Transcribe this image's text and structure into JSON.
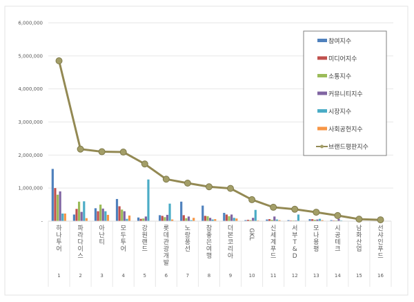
{
  "chart_data": {
    "type": "bar",
    "title": "",
    "xlabel": "",
    "ylabel": "",
    "ylim": [
      0,
      6000000
    ],
    "yticks": [
      "-",
      "1,000,000",
      "2,000,000",
      "3,000,000",
      "4,000,000",
      "5,000,000",
      "6,000,000"
    ],
    "grid": true,
    "legend_placement": "top-right",
    "categories": [
      "하나투어",
      "파라다이스",
      "아난티",
      "모두투어",
      "강원랜드",
      "롯데관광개발",
      "노랑풍선",
      "참좋은여행",
      "더본코리아",
      "GKL",
      "신세계푸드",
      "서부T&D",
      "모나용평",
      "시공테크",
      "남화산업",
      "선샤인푸드"
    ],
    "ranks": [
      "1",
      "2",
      "3",
      "4",
      "5",
      "6",
      "7",
      "8",
      "9",
      "10",
      "11",
      "12",
      "13",
      "14",
      "15",
      "16"
    ],
    "series": [
      {
        "name": "참여지수",
        "type": "bar",
        "color": "#4f81bd",
        "values": [
          1580000,
          200000,
          390000,
          670000,
          110000,
          180000,
          590000,
          470000,
          250000,
          30000,
          50000,
          30000,
          60000,
          30000,
          10000,
          10000
        ]
      },
      {
        "name": "미디어지수",
        "type": "bar",
        "color": "#c0504d",
        "values": [
          1000000,
          370000,
          300000,
          450000,
          70000,
          160000,
          180000,
          160000,
          200000,
          40000,
          60000,
          20000,
          60000,
          20000,
          10000,
          10000
        ]
      },
      {
        "name": "소통지수",
        "type": "bar",
        "color": "#9bbb59",
        "values": [
          800000,
          590000,
          500000,
          350000,
          80000,
          120000,
          90000,
          150000,
          150000,
          30000,
          40000,
          20000,
          40000,
          20000,
          10000,
          5000
        ]
      },
      {
        "name": "커뮤니티지수",
        "type": "bar",
        "color": "#8064a2",
        "values": [
          900000,
          280000,
          380000,
          300000,
          140000,
          190000,
          140000,
          100000,
          200000,
          100000,
          140000,
          20000,
          50000,
          70000,
          10000,
          5000
        ]
      },
      {
        "name": "시장지수",
        "type": "bar",
        "color": "#4bacc6",
        "values": [
          230000,
          600000,
          300000,
          70000,
          1260000,
          530000,
          30000,
          50000,
          100000,
          340000,
          50000,
          200000,
          70000,
          20000,
          10000,
          5000
        ]
      },
      {
        "name": "사회공헌지수",
        "type": "bar",
        "color": "#f79646",
        "values": [
          230000,
          90000,
          190000,
          170000,
          10000,
          50000,
          100000,
          60000,
          80000,
          20000,
          30000,
          10000,
          30000,
          10000,
          5000,
          5000
        ]
      },
      {
        "name": "브랜드평판지수",
        "type": "line",
        "color": "#938953",
        "values": [
          4850000,
          2180000,
          2100000,
          2090000,
          1730000,
          1270000,
          1150000,
          1040000,
          990000,
          650000,
          420000,
          360000,
          270000,
          170000,
          60000,
          40000
        ]
      }
    ]
  }
}
